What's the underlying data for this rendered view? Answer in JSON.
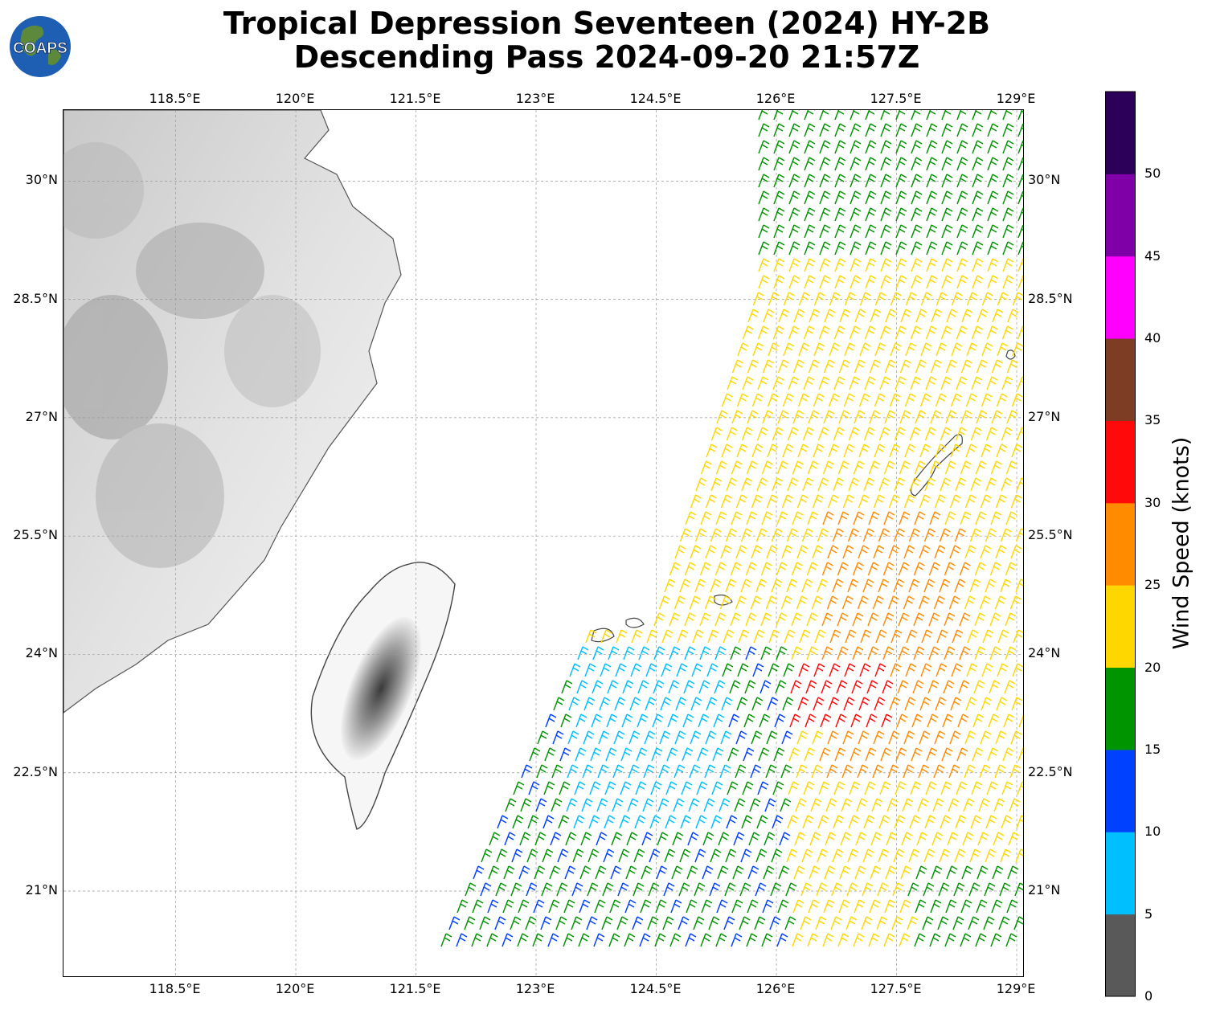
{
  "title": {
    "line1": "Tropical Depression Seventeen (2024) HY-2B",
    "line2": "Descending Pass 2024-09-20 21:57Z"
  },
  "logo": {
    "text": "COAPS",
    "icon": "globe-icon"
  },
  "map": {
    "lon_labels": [
      "118.5°E",
      "120°E",
      "121.5°E",
      "123°E",
      "124.5°E",
      "126°E",
      "127.5°E",
      "129°E"
    ],
    "lat_labels": [
      "30°N",
      "28.5°N",
      "27°N",
      "25.5°N",
      "24°N",
      "22.5°N",
      "21°N"
    ],
    "lon_values": [
      118.5,
      120,
      121.5,
      123,
      124.5,
      126,
      127.5,
      129
    ],
    "lat_values": [
      30,
      28.5,
      27,
      25.5,
      24,
      22.5,
      21
    ],
    "lon_range": [
      117.1,
      129.1
    ],
    "lat_range": [
      19.9,
      30.9
    ],
    "gridlines": true,
    "basemap": "grayscale terrain"
  },
  "colorbar": {
    "label": "Wind Speed (knots)",
    "ticks": [
      "0",
      "5",
      "10",
      "15",
      "20",
      "25",
      "30",
      "35",
      "40",
      "45",
      "50"
    ],
    "bins": [
      {
        "from": 0,
        "to": 5,
        "color": "#595959"
      },
      {
        "from": 5,
        "to": 10,
        "color": "#00bfff"
      },
      {
        "from": 10,
        "to": 15,
        "color": "#0040ff"
      },
      {
        "from": 15,
        "to": 20,
        "color": "#009400"
      },
      {
        "from": 20,
        "to": 25,
        "color": "#ffd700"
      },
      {
        "from": 25,
        "to": 30,
        "color": "#ff8c00"
      },
      {
        "from": 30,
        "to": 35,
        "color": "#ff0a0a"
      },
      {
        "from": 35,
        "to": 40,
        "color": "#7d3c24"
      },
      {
        "from": 40,
        "to": 45,
        "color": "#ff00ff"
      },
      {
        "from": 45,
        "to": 50,
        "color": "#8000a8"
      },
      {
        "from": 50,
        "to": 55,
        "color": "#2c0058"
      }
    ]
  }
}
